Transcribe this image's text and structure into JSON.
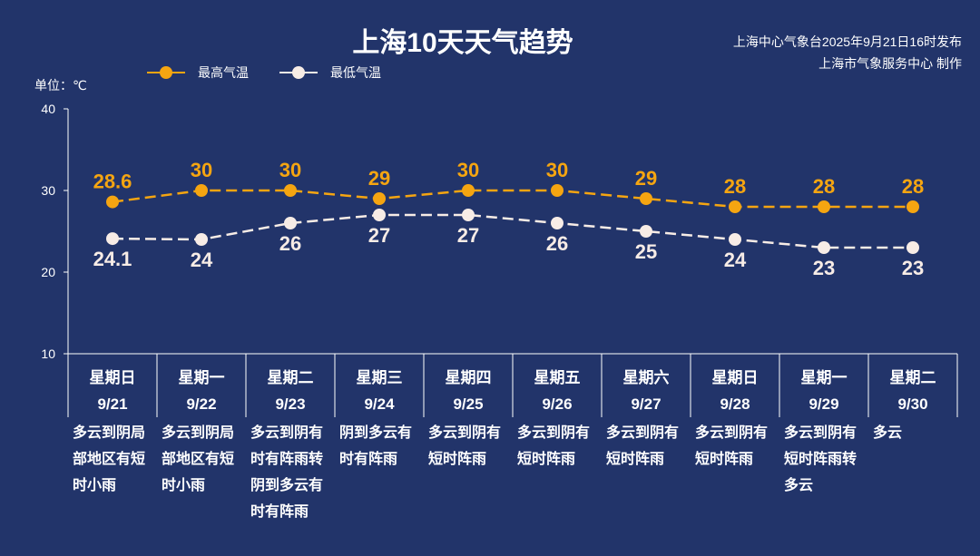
{
  "header": {
    "title": "上海10天天气趋势",
    "publisher_line1": "上海中心气象台2025年9月21日16时发布",
    "publisher_line2": "上海市气象服务中心 制作"
  },
  "chart_data": {
    "type": "line",
    "title": "上海10天天气趋势",
    "ylabel": "单位：℃",
    "ylim": [
      10,
      40
    ],
    "yticks": [
      10,
      20,
      30,
      40
    ],
    "grid": false,
    "legend_position": "top-left",
    "categories": [
      {
        "weekday": "星期日",
        "date": "9/21",
        "weather": "多云到阴局部地区有短时小雨"
      },
      {
        "weekday": "星期一",
        "date": "9/22",
        "weather": "多云到阴局部地区有短时小雨"
      },
      {
        "weekday": "星期二",
        "date": "9/23",
        "weather": "多云到阴有时有阵雨转阴到多云有时有阵雨"
      },
      {
        "weekday": "星期三",
        "date": "9/24",
        "weather": "阴到多云有时有阵雨"
      },
      {
        "weekday": "星期四",
        "date": "9/25",
        "weather": "多云到阴有短时阵雨"
      },
      {
        "weekday": "星期五",
        "date": "9/26",
        "weather": "多云到阴有短时阵雨"
      },
      {
        "weekday": "星期六",
        "date": "9/27",
        "weather": "多云到阴有短时阵雨"
      },
      {
        "weekday": "星期日",
        "date": "9/28",
        "weather": "多云到阴有短时阵雨"
      },
      {
        "weekday": "星期一",
        "date": "9/29",
        "weather": "多云到阴有短时阵雨转多云"
      },
      {
        "weekday": "星期二",
        "date": "9/30",
        "weather": "多云"
      }
    ],
    "series": [
      {
        "name": "最高气温",
        "color": "#f5a511",
        "values": [
          28.6,
          30,
          30,
          29,
          30,
          30,
          29,
          28,
          28,
          28
        ]
      },
      {
        "name": "最低气温",
        "color": "#f7ece6",
        "values": [
          24.1,
          24,
          26,
          27,
          27,
          26,
          25,
          24,
          23,
          23
        ]
      }
    ]
  }
}
